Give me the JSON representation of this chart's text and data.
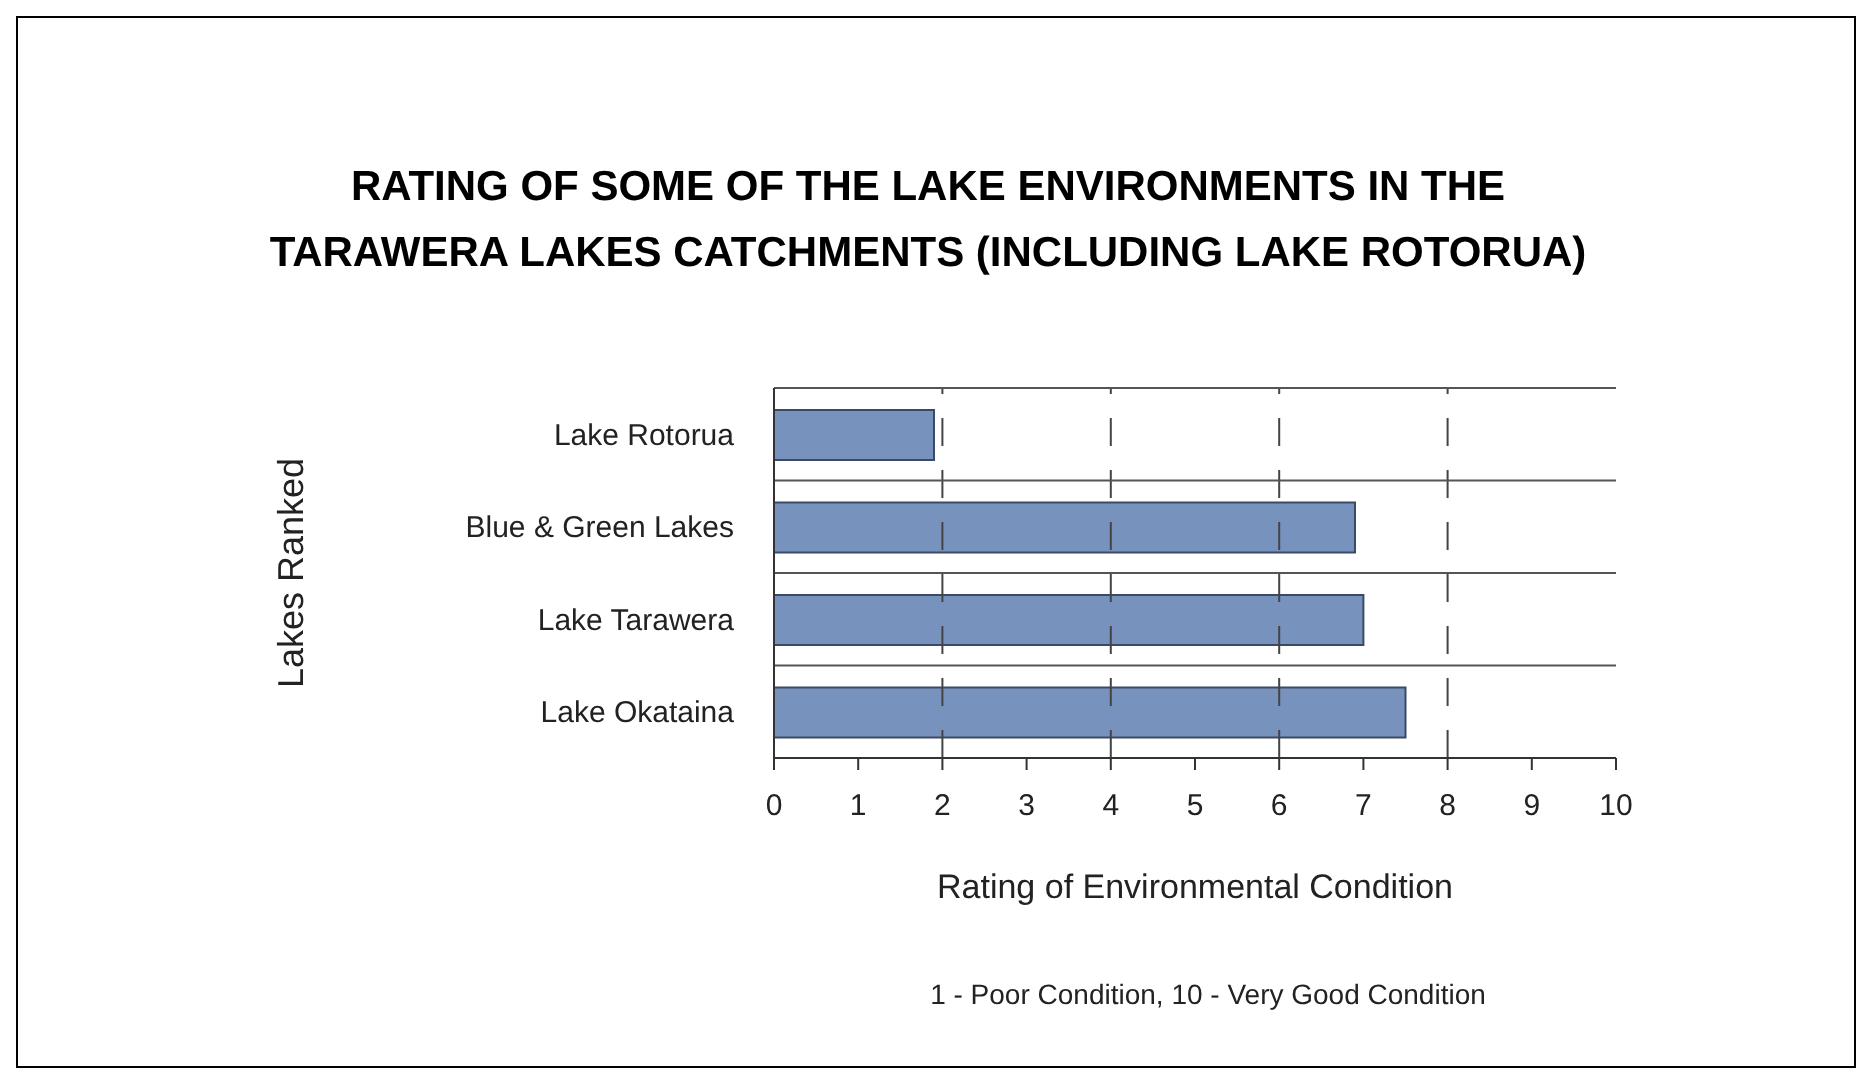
{
  "chart_data": {
    "type": "bar",
    "orientation": "horizontal",
    "title": "RATING OF SOME OF THE LAKE ENVIRONMENTS IN THE TARAWERA LAKES CATCHMENTS (INCLUDING LAKE ROTORUA)",
    "xlabel": "Rating of Environmental Condition",
    "ylabel": "Lakes Ranked",
    "annotations": [
      "1 - Poor Condition, 10 - Very Good Condition"
    ],
    "categories": [
      "Lake Rotorua",
      "Blue & Green Lakes",
      "Lake Tarawera",
      "Lake Okataina"
    ],
    "values": [
      1.9,
      6.9,
      7.0,
      7.5
    ],
    "color": "#7892be",
    "xlim": [
      0,
      10
    ],
    "xticks": [
      0,
      1,
      2,
      3,
      4,
      5,
      6,
      7,
      8,
      9,
      10
    ],
    "grid": true
  }
}
